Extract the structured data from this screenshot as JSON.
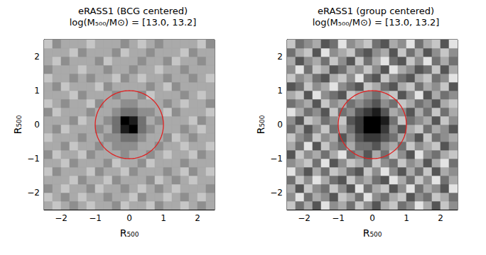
{
  "chart_data": [
    {
      "type": "heatmap",
      "title": "eRASS1 (BCG centered)",
      "subtitle": "log(M₅₀₀/M⊙) = [13.0, 13.2]",
      "xlabel": "R₅₀₀",
      "ylabel": "R₅₀₀",
      "xlim": [
        -2.5,
        2.5
      ],
      "ylim": [
        -2.5,
        2.5
      ],
      "xticks": [
        {
          "value": -2,
          "label": "−2"
        },
        {
          "value": -1,
          "label": "−1"
        },
        0,
        1,
        2
      ],
      "yticks": [
        {
          "value": -2,
          "label": "−2"
        },
        {
          "value": -1,
          "label": "−1"
        },
        0,
        1,
        2
      ],
      "color": "gray",
      "cell_range": [
        0,
        9
      ],
      "x": [
        -2.375,
        -2.125,
        -1.875,
        -1.625,
        -1.375,
        -1.125,
        -0.875,
        -0.625,
        -0.375,
        -0.125,
        0.125,
        0.375,
        0.625,
        0.875,
        1.125,
        1.375,
        1.625,
        1.875,
        2.125,
        2.375
      ],
      "y": [
        -2.375,
        -2.125,
        -1.875,
        -1.625,
        -1.375,
        -1.125,
        -0.875,
        -0.625,
        -0.375,
        -0.125,
        0.125,
        0.375,
        0.625,
        0.875,
        1.125,
        1.375,
        1.625,
        1.875,
        2.125,
        2.375
      ],
      "cells": [
        [
          3,
          2,
          3,
          4,
          3,
          2,
          3,
          3,
          4,
          2,
          3,
          3,
          2,
          4,
          3,
          3,
          2,
          3,
          4,
          3
        ],
        [
          2,
          3,
          4,
          3,
          2,
          3,
          3,
          4,
          3,
          3,
          2,
          4,
          3,
          3,
          2,
          3,
          4,
          3,
          2,
          3
        ],
        [
          4,
          3,
          2,
          3,
          3,
          4,
          2,
          3,
          3,
          4,
          3,
          2,
          3,
          4,
          3,
          2,
          3,
          3,
          3,
          4
        ],
        [
          3,
          3,
          3,
          2,
          4,
          3,
          3,
          2,
          4,
          3,
          3,
          3,
          4,
          2,
          3,
          4,
          3,
          2,
          3,
          3
        ],
        [
          2,
          4,
          3,
          3,
          3,
          2,
          4,
          3,
          3,
          2,
          4,
          3,
          3,
          3,
          4,
          3,
          2,
          4,
          3,
          2
        ],
        [
          3,
          3,
          2,
          4,
          3,
          3,
          3,
          4,
          2,
          3,
          3,
          4,
          2,
          3,
          3,
          3,
          4,
          3,
          3,
          3
        ],
        [
          4,
          2,
          3,
          3,
          2,
          4,
          3,
          3,
          3,
          4,
          3,
          3,
          4,
          3,
          2,
          3,
          3,
          2,
          4,
          3
        ],
        [
          3,
          3,
          4,
          2,
          3,
          3,
          4,
          3,
          4,
          4,
          4,
          3,
          3,
          4,
          3,
          3,
          2,
          3,
          3,
          2
        ],
        [
          2,
          3,
          3,
          3,
          4,
          3,
          3,
          4,
          4,
          5,
          5,
          4,
          3,
          3,
          4,
          2,
          3,
          4,
          3,
          3
        ],
        [
          3,
          4,
          2,
          3,
          3,
          3,
          4,
          3,
          5,
          8,
          9,
          5,
          4,
          3,
          3,
          3,
          4,
          3,
          2,
          3
        ],
        [
          3,
          3,
          3,
          4,
          2,
          3,
          3,
          4,
          5,
          9,
          8,
          5,
          3,
          4,
          3,
          3,
          3,
          2,
          4,
          3
        ],
        [
          4,
          2,
          3,
          3,
          3,
          4,
          3,
          3,
          4,
          5,
          5,
          4,
          4,
          3,
          2,
          4,
          3,
          3,
          3,
          2
        ],
        [
          2,
          3,
          4,
          3,
          3,
          2,
          4,
          3,
          3,
          4,
          4,
          3,
          3,
          3,
          4,
          3,
          2,
          3,
          3,
          4
        ],
        [
          3,
          3,
          3,
          2,
          4,
          3,
          3,
          3,
          4,
          3,
          3,
          4,
          2,
          3,
          3,
          3,
          4,
          3,
          2,
          3
        ],
        [
          3,
          4,
          2,
          3,
          3,
          3,
          2,
          4,
          3,
          3,
          3,
          3,
          4,
          3,
          2,
          4,
          3,
          3,
          3,
          3
        ],
        [
          2,
          3,
          3,
          4,
          3,
          4,
          3,
          3,
          2,
          4,
          3,
          2,
          3,
          3,
          4,
          3,
          3,
          4,
          3,
          2
        ],
        [
          4,
          3,
          3,
          3,
          2,
          3,
          3,
          4,
          3,
          3,
          4,
          3,
          3,
          2,
          3,
          3,
          4,
          3,
          3,
          3
        ],
        [
          3,
          2,
          4,
          3,
          3,
          3,
          4,
          2,
          3,
          3,
          3,
          4,
          3,
          3,
          4,
          2,
          3,
          3,
          4,
          3
        ],
        [
          3,
          3,
          3,
          2,
          4,
          3,
          3,
          3,
          4,
          2,
          3,
          3,
          4,
          3,
          3,
          3,
          2,
          4,
          3,
          3
        ],
        [
          2,
          4,
          3,
          3,
          3,
          2,
          3,
          3,
          3,
          4,
          3,
          2,
          3,
          4,
          3,
          3,
          3,
          3,
          2,
          4
        ]
      ],
      "circle": {
        "x": 0,
        "y": 0,
        "radius": 1,
        "color": "#e02020"
      }
    },
    {
      "type": "heatmap",
      "title": "eRASS1 (group centered)",
      "subtitle": "log(M₅₀₀/M⊙) = [13.0, 13.2]",
      "xlabel": "R₅₀₀",
      "ylabel": "R₅₀₀",
      "xlim": [
        -2.5,
        2.5
      ],
      "ylim": [
        -2.5,
        2.5
      ],
      "xticks": [
        {
          "value": -2,
          "label": "−2"
        },
        {
          "value": -1,
          "label": "−1"
        },
        0,
        1,
        2
      ],
      "yticks": [
        {
          "value": -2,
          "label": "−2"
        },
        {
          "value": -1,
          "label": "−1"
        },
        0,
        1,
        2
      ],
      "color": "gray",
      "cell_range": [
        0,
        9
      ],
      "x": [
        -2.375,
        -2.125,
        -1.875,
        -1.625,
        -1.375,
        -1.125,
        -0.875,
        -0.625,
        -0.375,
        -0.125,
        0.125,
        0.375,
        0.625,
        0.875,
        1.125,
        1.375,
        1.625,
        1.875,
        2.125,
        2.375
      ],
      "y": [
        -2.375,
        -2.125,
        -1.875,
        -1.625,
        -1.375,
        -1.125,
        -0.875,
        -0.625,
        -0.375,
        -0.125,
        0.125,
        0.375,
        0.625,
        0.875,
        1.125,
        1.375,
        1.625,
        1.875,
        2.125,
        2.375
      ],
      "cells": [
        [
          2,
          5,
          3,
          6,
          1,
          4,
          3,
          5,
          2,
          4,
          6,
          3,
          2,
          5,
          4,
          1,
          3,
          6,
          2,
          4
        ],
        [
          4,
          1,
          5,
          3,
          4,
          6,
          2,
          3,
          5,
          1,
          4,
          5,
          3,
          2,
          6,
          4,
          5,
          2,
          3,
          5
        ],
        [
          3,
          6,
          2,
          4,
          5,
          2,
          4,
          6,
          1,
          5,
          3,
          2,
          6,
          4,
          1,
          5,
          3,
          4,
          6,
          1
        ],
        [
          5,
          2,
          4,
          1,
          3,
          5,
          6,
          2,
          4,
          3,
          5,
          6,
          1,
          3,
          5,
          2,
          4,
          1,
          5,
          3
        ],
        [
          1,
          4,
          6,
          3,
          5,
          2,
          3,
          5,
          6,
          2,
          4,
          1,
          4,
          6,
          3,
          5,
          2,
          6,
          3,
          4
        ],
        [
          4,
          3,
          2,
          5,
          1,
          6,
          4,
          2,
          3,
          5,
          2,
          4,
          5,
          2,
          4,
          3,
          6,
          3,
          1,
          5
        ],
        [
          6,
          2,
          4,
          3,
          5,
          3,
          1,
          5,
          4,
          6,
          3,
          5,
          2,
          4,
          6,
          1,
          4,
          5,
          3,
          2
        ],
        [
          3,
          5,
          1,
          6,
          2,
          4,
          5,
          3,
          5,
          5,
          6,
          4,
          3,
          5,
          2,
          4,
          3,
          2,
          6,
          4
        ],
        [
          2,
          4,
          5,
          2,
          4,
          3,
          6,
          4,
          6,
          7,
          7,
          6,
          5,
          3,
          4,
          6,
          2,
          5,
          4,
          3
        ],
        [
          5,
          3,
          6,
          4,
          2,
          5,
          3,
          5,
          7,
          9,
          9,
          7,
          4,
          6,
          3,
          2,
          5,
          3,
          4,
          6
        ],
        [
          4,
          6,
          2,
          3,
          5,
          4,
          2,
          6,
          7,
          9,
          9,
          8,
          5,
          2,
          5,
          4,
          3,
          6,
          2,
          4
        ],
        [
          1,
          3,
          5,
          4,
          6,
          2,
          5,
          4,
          6,
          7,
          8,
          6,
          3,
          4,
          6,
          3,
          5,
          2,
          5,
          3
        ],
        [
          5,
          4,
          3,
          6,
          2,
          4,
          3,
          5,
          4,
          5,
          6,
          4,
          5,
          2,
          3,
          5,
          4,
          6,
          3,
          2
        ],
        [
          3,
          2,
          6,
          1,
          4,
          5,
          6,
          2,
          3,
          4,
          5,
          3,
          2,
          6,
          4,
          1,
          6,
          3,
          5,
          4
        ],
        [
          6,
          5,
          2,
          4,
          3,
          1,
          4,
          5,
          6,
          2,
          3,
          5,
          6,
          3,
          2,
          5,
          3,
          4,
          2,
          6
        ],
        [
          2,
          4,
          3,
          5,
          6,
          3,
          2,
          4,
          1,
          5,
          6,
          2,
          4,
          5,
          6,
          3,
          2,
          5,
          4,
          1
        ],
        [
          4,
          1,
          5,
          2,
          3,
          6,
          5,
          3,
          4,
          2,
          4,
          6,
          1,
          3,
          4,
          6,
          5,
          2,
          6,
          3
        ],
        [
          3,
          6,
          4,
          3,
          5,
          2,
          4,
          6,
          2,
          5,
          3,
          1,
          5,
          6,
          2,
          4,
          1,
          5,
          3,
          5
        ],
        [
          5,
          3,
          2,
          6,
          1,
          4,
          3,
          2,
          5,
          6,
          4,
          3,
          6,
          2,
          5,
          3,
          6,
          4,
          2,
          4
        ],
        [
          2,
          5,
          4,
          3,
          6,
          5,
          1,
          4,
          3,
          2,
          5,
          6,
          3,
          4,
          1,
          5,
          3,
          2,
          6,
          1
        ]
      ],
      "circle": {
        "x": 0,
        "y": 0,
        "radius": 1,
        "color": "#e02020"
      }
    }
  ]
}
